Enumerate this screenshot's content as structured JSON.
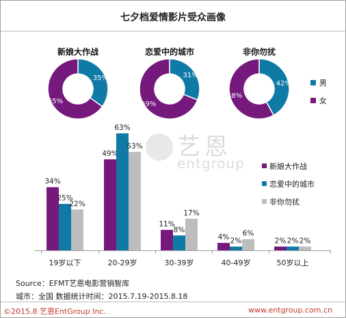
{
  "title": "七夕档爱情影片受众画像",
  "colors": {
    "purple": "#751a7c",
    "blue": "#0f7aa6",
    "gray": "#bdbdbd",
    "text": "#222222"
  },
  "watermark": {
    "text1": "艺恩",
    "text2": "entgroup"
  },
  "donut_legend": [
    {
      "label": "男",
      "color": "#0f7aa6"
    },
    {
      "label": "女",
      "color": "#751a7c"
    }
  ],
  "chart_data": [
    {
      "type": "pie",
      "title": "新娘大作战",
      "categories": [
        "男",
        "女"
      ],
      "values": [
        35,
        65
      ],
      "labels": [
        "35%",
        "65%"
      ]
    },
    {
      "type": "pie",
      "title": "恋爱中的城市",
      "categories": [
        "男",
        "女"
      ],
      "values": [
        31,
        69
      ],
      "labels": [
        "31%",
        "69%"
      ]
    },
    {
      "type": "pie",
      "title": "非你勿扰",
      "categories": [
        "男",
        "女"
      ],
      "values": [
        42,
        58
      ],
      "labels": [
        "42%",
        "58%"
      ]
    },
    {
      "type": "bar",
      "categories": [
        "19岁以下",
        "20-29岁",
        "30-39岁",
        "40-49岁",
        "50岁以上"
      ],
      "series": [
        {
          "name": "新娘大作战",
          "values": [
            34,
            49,
            11,
            4,
            2
          ],
          "labels": [
            "34%",
            "49%",
            "11%",
            "4%",
            "2%"
          ]
        },
        {
          "name": "恋爱中的城市",
          "values": [
            25,
            63,
            8,
            2,
            2
          ],
          "labels": [
            "25%",
            "63%",
            "8%",
            "2%",
            "2%"
          ]
        },
        {
          "name": "非你勿扰",
          "values": [
            22,
            53,
            17,
            6,
            2
          ],
          "labels": [
            "22%",
            "53%",
            "17%",
            "6%",
            "2%"
          ]
        }
      ],
      "ylim": [
        0,
        63
      ],
      "grid": false,
      "legend": "right"
    }
  ],
  "footer": {
    "source": "Source：EFMT艺恩电影营销智库",
    "city": "城市：全国   数据统计时间：2015.7.19-2015.8.18",
    "copyright": "©2015.8  艺恩EntGroup Inc.",
    "website": "www.entgroup.com.cn"
  }
}
